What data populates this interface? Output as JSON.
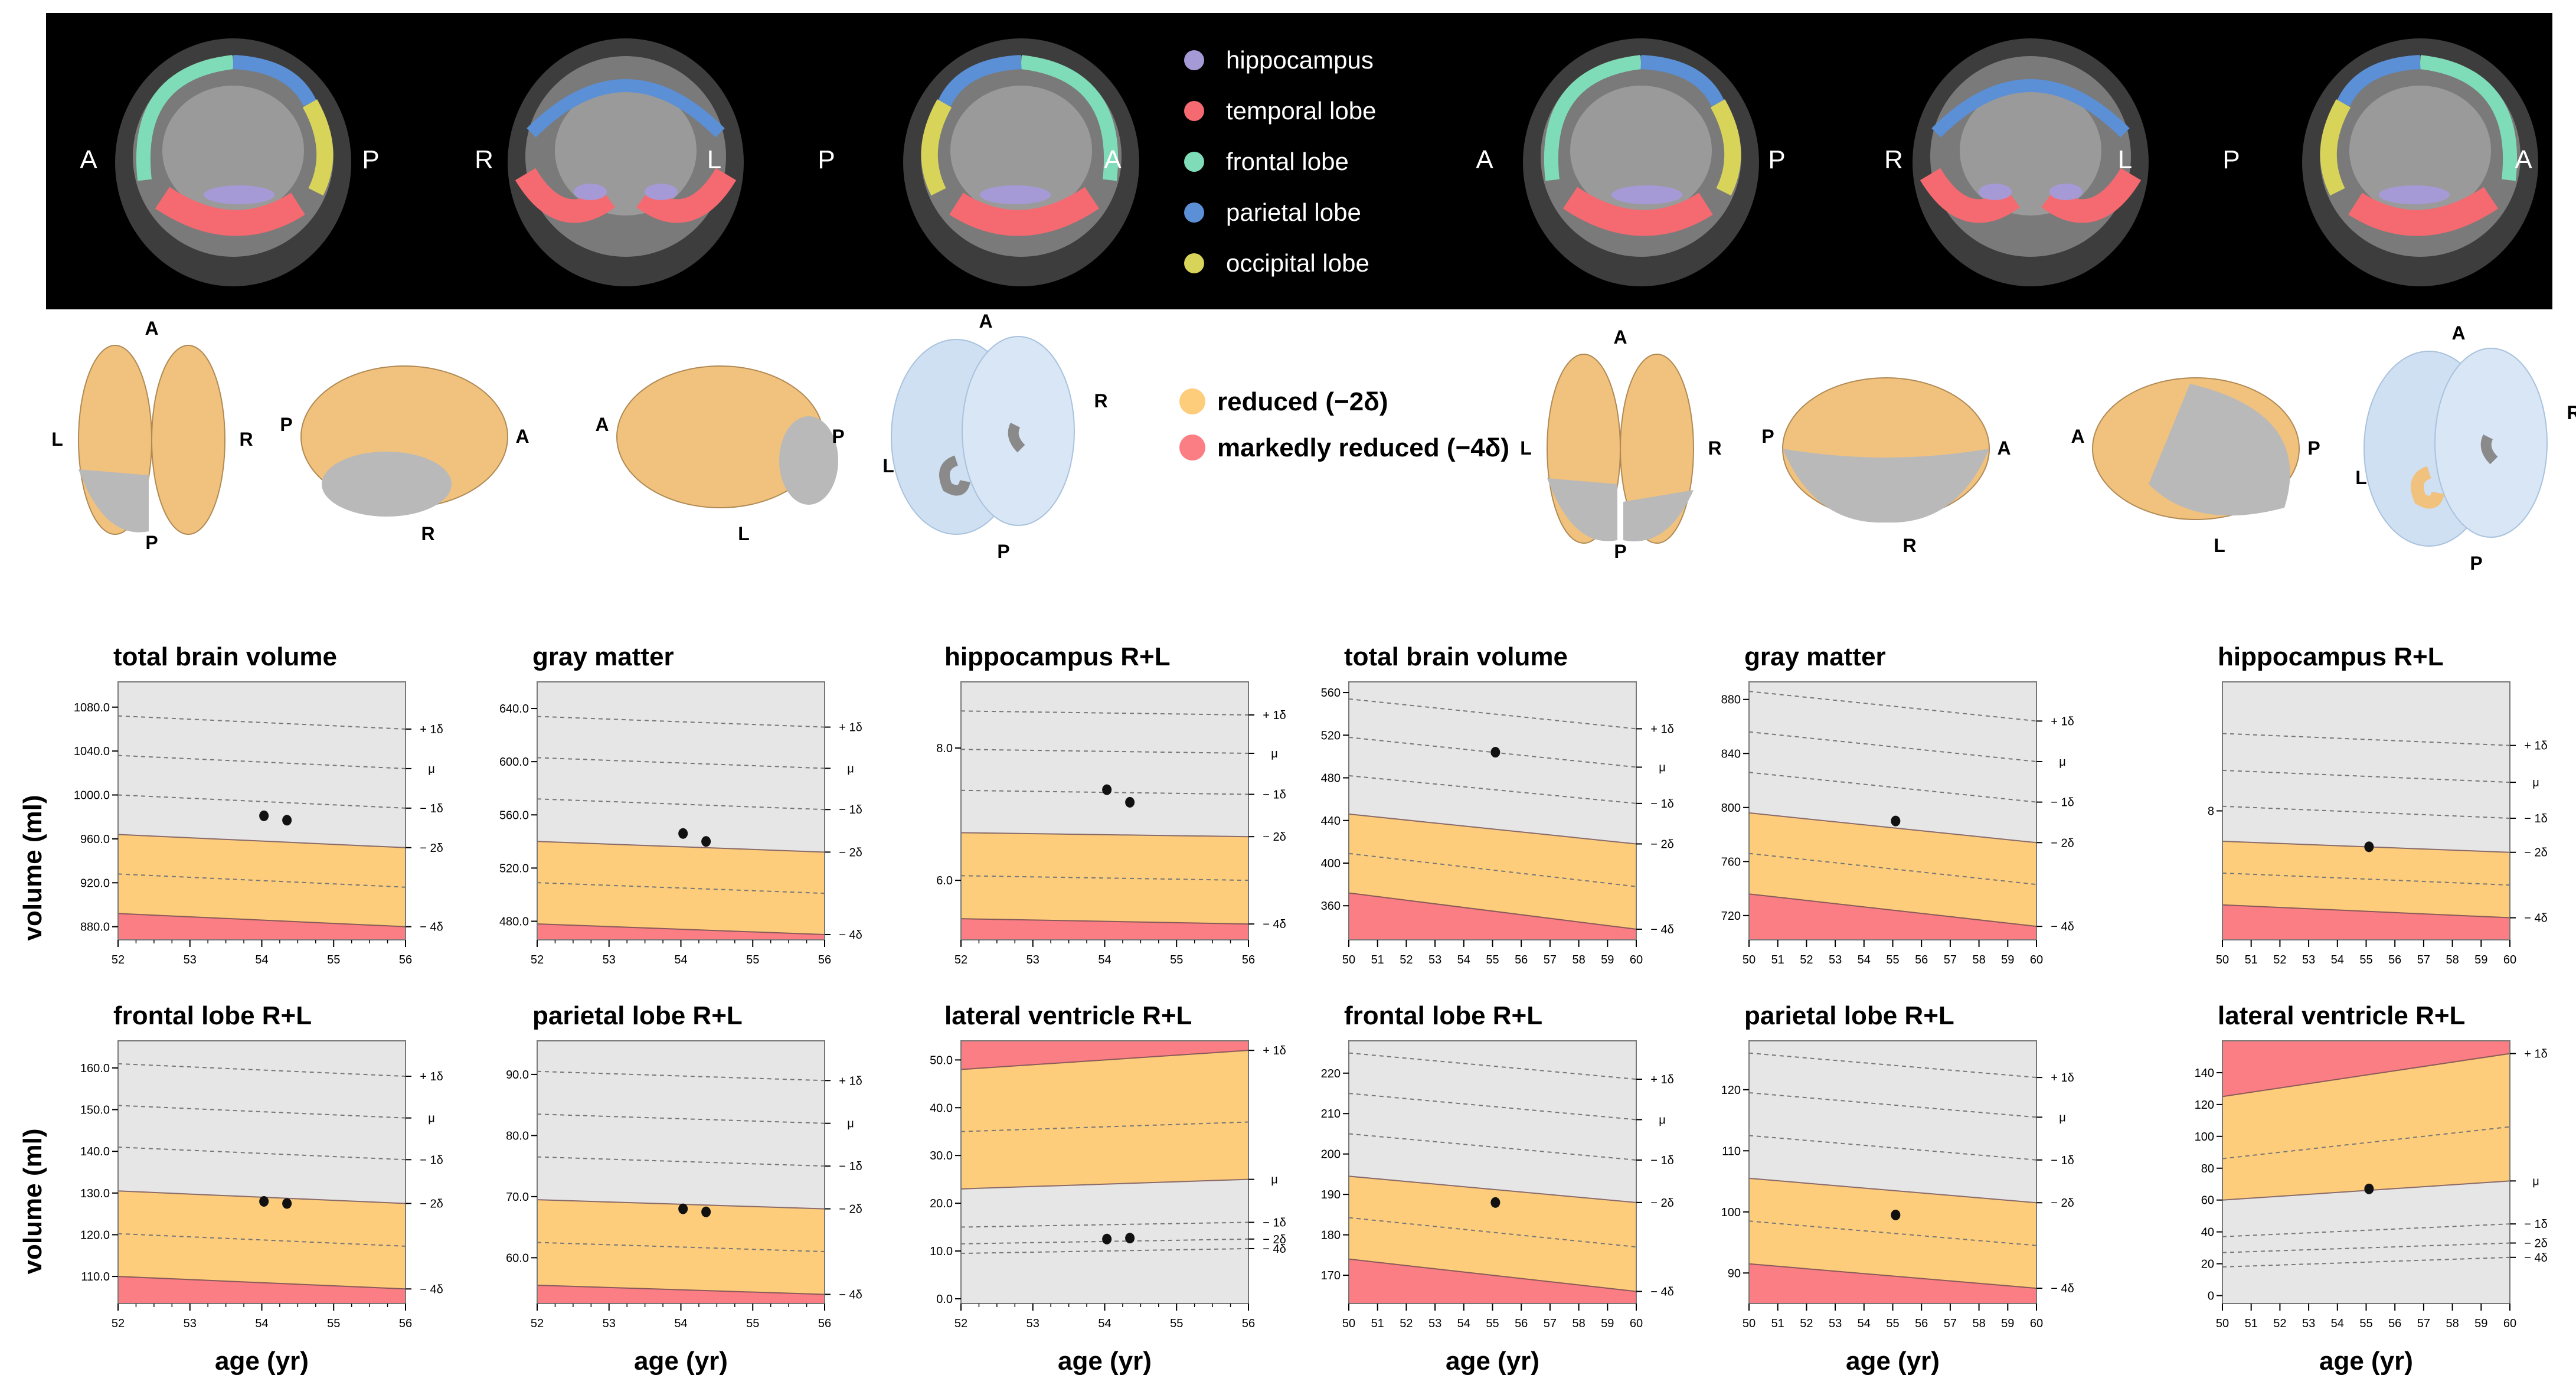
{
  "colors": {
    "hippocampus": "#a59ad6",
    "temporal": "#f46a70",
    "frontal": "#7fdcb8",
    "parietal": "#5b8fd6",
    "occipital": "#d8d45a",
    "reduced": "#fdcd7b",
    "markedly": "#fa7e83",
    "normal": "#e6e6e6",
    "brain_tan": "#f1c27d",
    "brain_gray": "#b9b9b9",
    "ventricle_shell": "#cfe0f2"
  },
  "mri_legend": [
    {
      "label": "hippocampus",
      "color_key": "hippocampus"
    },
    {
      "label": "temporal lobe",
      "color_key": "temporal"
    },
    {
      "label": "frontal lobe",
      "color_key": "frontal"
    },
    {
      "label": "parietal lobe",
      "color_key": "parietal"
    },
    {
      "label": "occipital lobe",
      "color_key": "occipital"
    }
  ],
  "mri_orientation": [
    [
      "A",
      "P"
    ],
    [
      "R",
      "L"
    ],
    [
      "P",
      "A"
    ],
    [
      "A",
      "P"
    ],
    [
      "R",
      "L"
    ],
    [
      "P",
      "A"
    ]
  ],
  "severity_legend": [
    {
      "label": "reduced  (−2δ)",
      "color_key": "reduced"
    },
    {
      "label": "markedly reduced (−4δ)",
      "color_key": "markedly"
    }
  ],
  "brain_orientation_left": {
    "top": [
      "A",
      "L",
      "R",
      "P"
    ],
    "right": [
      "P",
      "A",
      "R"
    ],
    "left": [
      "A",
      "P",
      "L"
    ],
    "ventricle": [
      "A",
      "R",
      "L",
      "P"
    ]
  },
  "brain_orientation_right": {
    "top": [
      "A",
      "L",
      "R",
      "P"
    ],
    "right": [
      "P",
      "A",
      "R"
    ],
    "left": [
      "A",
      "P",
      "L"
    ],
    "ventricle": [
      "A",
      "R",
      "L",
      "P"
    ]
  },
  "axis_titles": {
    "y": "volume (ml)",
    "x": "age (yr)"
  },
  "sd_labels": [
    "+ 1δ",
    "μ",
    "− 1δ",
    "− 2δ",
    "− 4δ"
  ],
  "chart_data": [
    {
      "type": "line",
      "title": "total brain volume",
      "xlim": [
        52,
        56
      ],
      "xticks": [
        52,
        53,
        54,
        55,
        56
      ],
      "ylim": [
        868,
        1103
      ],
      "yticks": [
        880.0,
        920.0,
        960.0,
        1000.0,
        1040.0,
        1080.0
      ],
      "ytick_decimals": 1,
      "bands": {
        "minus4": [
          892,
          880
        ],
        "minus2": [
          964,
          952
        ],
        "minus1": [
          1000,
          988
        ],
        "mu": [
          1036,
          1024
        ],
        "plus1": [
          1072,
          1060
        ]
      },
      "points": [
        [
          54.03,
          981
        ],
        [
          54.35,
          977
        ]
      ]
    },
    {
      "type": "line",
      "title": "gray matter",
      "xlim": [
        52,
        56
      ],
      "xticks": [
        52,
        53,
        54,
        55,
        56
      ],
      "ylim": [
        466,
        660
      ],
      "yticks": [
        480.0,
        520.0,
        560.0,
        600.0,
        640.0
      ],
      "ytick_decimals": 1,
      "bands": {
        "minus4": [
          478,
          470
        ],
        "minus2": [
          540,
          532
        ],
        "minus1": [
          572,
          564
        ],
        "mu": [
          603,
          595
        ],
        "plus1": [
          634,
          626
        ]
      },
      "points": [
        [
          54.03,
          546
        ],
        [
          54.35,
          540
        ]
      ]
    },
    {
      "type": "line",
      "title": "hippocampus R+L",
      "xlim": [
        52,
        56
      ],
      "xticks": [
        52,
        53,
        54,
        55,
        56
      ],
      "ylim": [
        5.1,
        9.0
      ],
      "yticks": [
        6.0,
        8.0
      ],
      "ytick_decimals": 1,
      "bands": {
        "minus4": [
          5.42,
          5.34
        ],
        "minus2": [
          6.72,
          6.66
        ],
        "minus1": [
          7.36,
          7.3
        ],
        "mu": [
          7.98,
          7.92
        ],
        "plus1": [
          8.56,
          8.5
        ]
      },
      "points": [
        [
          54.03,
          7.37
        ],
        [
          54.35,
          7.18
        ]
      ]
    },
    {
      "type": "line",
      "title": "total brain volume",
      "xlim": [
        50,
        60
      ],
      "xticks": [
        50,
        51,
        52,
        53,
        54,
        55,
        56,
        57,
        58,
        59,
        60
      ],
      "ylim": [
        328,
        570
      ],
      "yticks": [
        360,
        400,
        440,
        480,
        520,
        560
      ],
      "ytick_decimals": 0,
      "bands": {
        "minus4": [
          372,
          338
        ],
        "minus2": [
          446,
          418
        ],
        "minus1": [
          482,
          456
        ],
        "mu": [
          518,
          490
        ],
        "plus1": [
          554,
          526
        ]
      },
      "points": [
        [
          55.1,
          504
        ]
      ]
    },
    {
      "type": "line",
      "title": "gray matter",
      "xlim": [
        50,
        60
      ],
      "xticks": [
        50,
        51,
        52,
        53,
        54,
        55,
        56,
        57,
        58,
        59,
        60
      ],
      "ylim": [
        702,
        893
      ],
      "yticks": [
        720,
        760,
        800,
        840,
        880
      ],
      "ytick_decimals": 0,
      "bands": {
        "minus4": [
          736,
          712
        ],
        "minus2": [
          796,
          774
        ],
        "minus1": [
          826,
          804
        ],
        "mu": [
          856,
          834
        ],
        "plus1": [
          886,
          864
        ]
      },
      "points": [
        [
          55.1,
          790
        ]
      ]
    },
    {
      "type": "line",
      "title": "hippocampus R+L",
      "xlim": [
        50,
        60
      ],
      "xticks": [
        50,
        51,
        52,
        53,
        54,
        55,
        56,
        57,
        58,
        59,
        60
      ],
      "ylim": [
        6.6,
        9.4
      ],
      "yticks": [
        8
      ],
      "ytick_decimals": 0,
      "bands": {
        "minus4": [
          6.98,
          6.84
        ],
        "minus2": [
          7.67,
          7.55
        ],
        "minus1": [
          8.05,
          7.92
        ],
        "mu": [
          8.44,
          8.31
        ],
        "plus1": [
          8.84,
          8.71
        ]
      },
      "points": [
        [
          55.1,
          7.61
        ]
      ]
    },
    {
      "type": "line",
      "title": "frontal lobe R+L",
      "xlim": [
        52,
        56
      ],
      "xticks": [
        52,
        53,
        54,
        55,
        56
      ],
      "ylim": [
        103.5,
        166.5
      ],
      "yticks": [
        110.0,
        120.0,
        130.0,
        140.0,
        150.0,
        160.0
      ],
      "ytick_decimals": 1,
      "bands": {
        "minus4": [
          110,
          107
        ],
        "minus2": [
          130.5,
          127.5
        ],
        "minus1": [
          141,
          138
        ],
        "mu": [
          151,
          148
        ],
        "plus1": [
          161,
          158
        ]
      },
      "points": [
        [
          54.03,
          128.0
        ],
        [
          54.35,
          127.5
        ]
      ]
    },
    {
      "type": "line",
      "title": "parietal lobe R+L",
      "xlim": [
        52,
        56
      ],
      "xticks": [
        52,
        53,
        54,
        55,
        56
      ],
      "ylim": [
        52.5,
        95.5
      ],
      "yticks": [
        60.0,
        70.0,
        80.0,
        90.0
      ],
      "ytick_decimals": 1,
      "bands": {
        "minus4": [
          55.5,
          54
        ],
        "minus2": [
          69.5,
          68
        ],
        "minus1": [
          76.5,
          75
        ],
        "mu": [
          83.5,
          82
        ],
        "plus1": [
          90.5,
          89
        ]
      },
      "points": [
        [
          54.03,
          68.0
        ],
        [
          54.35,
          67.5
        ]
      ]
    },
    {
      "type": "line",
      "title": "lateral ventricle R+L",
      "xlim": [
        52,
        56
      ],
      "xticks": [
        52,
        53,
        54,
        55,
        56
      ],
      "ylim": [
        -1,
        54
      ],
      "yticks": [
        0.0,
        10.0,
        20.0,
        30.0,
        40.0,
        50.0
      ],
      "ytick_decimals": 1,
      "bands": {
        "minus4": [
          9.5,
          10.5
        ],
        "minus2": [
          11.5,
          12.5
        ],
        "minus1": [
          15,
          16
        ],
        "mu": [
          23,
          25
        ],
        "plus1": [
          48,
          52
        ]
      },
      "extra_dashed": [
        [
          35,
          37
        ]
      ],
      "inverse": true,
      "points": [
        [
          54.03,
          12.5
        ],
        [
          54.35,
          12.7
        ]
      ]
    },
    {
      "type": "line",
      "title": "frontal lobe R+L",
      "xlim": [
        50,
        60
      ],
      "xticks": [
        50,
        51,
        52,
        53,
        54,
        55,
        56,
        57,
        58,
        59,
        60
      ],
      "ylim": [
        163,
        228
      ],
      "yticks": [
        170,
        180,
        190,
        200,
        210,
        220
      ],
      "ytick_decimals": 0,
      "bands": {
        "minus4": [
          174,
          166
        ],
        "minus2": [
          194.5,
          188
        ],
        "minus1": [
          205,
          198.5
        ],
        "mu": [
          215,
          208.5
        ],
        "plus1": [
          225,
          218.5
        ]
      },
      "points": [
        [
          55.1,
          188
        ]
      ]
    },
    {
      "type": "line",
      "title": "parietal lobe R+L",
      "xlim": [
        50,
        60
      ],
      "xticks": [
        50,
        51,
        52,
        53,
        54,
        55,
        56,
        57,
        58,
        59,
        60
      ],
      "ylim": [
        85,
        128
      ],
      "yticks": [
        90,
        100,
        110,
        120
      ],
      "ytick_decimals": 0,
      "bands": {
        "minus4": [
          91.5,
          87.5
        ],
        "minus2": [
          105.5,
          101.5
        ],
        "minus1": [
          112.5,
          108.5
        ],
        "mu": [
          119.5,
          115.5
        ],
        "plus1": [
          126,
          122
        ]
      },
      "points": [
        [
          55.1,
          99.5
        ]
      ]
    },
    {
      "type": "line",
      "title": "lateral ventricle R+L",
      "xlim": [
        50,
        60
      ],
      "xticks": [
        50,
        51,
        52,
        53,
        54,
        55,
        56,
        57,
        58,
        59,
        60
      ],
      "ylim": [
        -5,
        160
      ],
      "yticks": [
        0,
        20,
        40,
        60,
        80,
        100,
        120,
        140
      ],
      "ytick_decimals": 0,
      "bands": {
        "minus4": [
          18,
          24
        ],
        "minus2": [
          27,
          33
        ],
        "minus1": [
          37,
          45
        ],
        "mu": [
          60,
          72
        ],
        "plus1": [
          125,
          152
        ]
      },
      "extra_dashed": [
        [
          86,
          106
        ]
      ],
      "inverse": true,
      "points": [
        [
          55.1,
          67
        ]
      ]
    }
  ]
}
